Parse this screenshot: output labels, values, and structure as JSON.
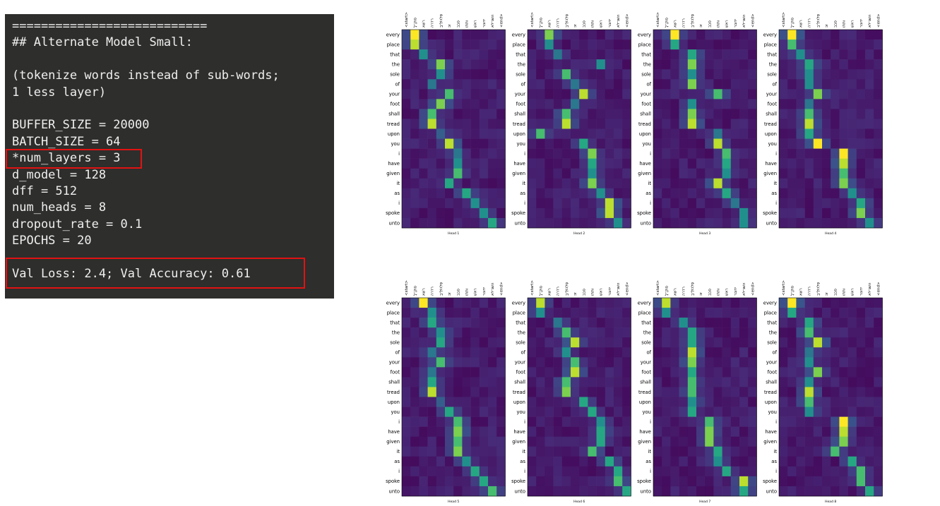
{
  "terminal": {
    "lines": [
      "===========================",
      "## Alternate Model Small:",
      "",
      "(tokenize words instead of sub-words;",
      "1 less layer)",
      "",
      "BUFFER_SIZE = 20000",
      "BATCH_SIZE = 64",
      "*num_layers = 3",
      "d_model = 128",
      "dff = 512",
      "num_heads = 8",
      "dropout_rate = 0.1",
      "EPOCHS = 20",
      "",
      "Val Loss: 2.4; Val Accuracy: 0.61"
    ]
  },
  "chart_data": {
    "type": "heatmap",
    "colormap": "viridis",
    "x_tokens": [
      "<start>",
      "סוּקְ־לָ",
      "רשׁא",
      "רדרה",
      "סְלִכוֹלְ־ךָ",
      "זכ",
      "סבב",
      "ותתו",
      "ראשׁ",
      "ידובר",
      "השׁנ־לא",
      "<end>"
    ],
    "y_tokens": [
      "every",
      "place",
      "that",
      "the",
      "sole",
      "of",
      "your",
      "foot",
      "shall",
      "tread",
      "upon",
      "you",
      "i",
      "have",
      "given",
      "it",
      "as",
      "i",
      "spoke",
      "unto"
    ],
    "heads": [
      {
        "name": "Head 1",
        "peaks": [
          [
            1,
            1.0
          ],
          [
            1,
            0.9
          ],
          [
            2,
            0.5
          ],
          [
            4,
            0.8
          ],
          [
            4,
            0.5
          ],
          [
            3,
            0.4
          ],
          [
            5,
            0.7
          ],
          [
            4,
            0.8
          ],
          [
            3,
            0.7
          ],
          [
            3,
            0.9
          ],
          [
            4,
            0.3
          ],
          [
            5,
            0.9
          ],
          [
            6,
            0.4
          ],
          [
            6,
            0.5
          ],
          [
            6,
            0.7
          ],
          [
            5,
            0.6
          ],
          [
            7,
            0.6
          ],
          [
            8,
            0.5
          ],
          [
            9,
            0.5
          ],
          [
            10,
            0.6
          ]
        ]
      },
      {
        "name": "Head 2",
        "peaks": [
          [
            2,
            0.8
          ],
          [
            2,
            0.5
          ],
          [
            3,
            0.4
          ],
          [
            8,
            0.5
          ],
          [
            4,
            0.7
          ],
          [
            5,
            0.4
          ],
          [
            6,
            0.9
          ],
          [
            5,
            0.4
          ],
          [
            4,
            0.7
          ],
          [
            4,
            0.9
          ],
          [
            1,
            0.7
          ],
          [
            6,
            0.6
          ],
          [
            7,
            0.8
          ],
          [
            7,
            0.6
          ],
          [
            7,
            0.5
          ],
          [
            7,
            0.8
          ],
          [
            8,
            0.5
          ],
          [
            9,
            0.9
          ],
          [
            9,
            0.9
          ],
          [
            10,
            0.5
          ]
        ]
      },
      {
        "name": "Head 3",
        "peaks": [
          [
            2,
            1.0
          ],
          [
            2,
            0.6
          ],
          [
            4,
            0.6
          ],
          [
            4,
            0.8
          ],
          [
            4,
            0.5
          ],
          [
            4,
            0.8
          ],
          [
            7,
            0.7
          ],
          [
            4,
            0.5
          ],
          [
            4,
            0.8
          ],
          [
            4,
            0.9
          ],
          [
            7,
            0.4
          ],
          [
            7,
            0.9
          ],
          [
            8,
            0.7
          ],
          [
            8,
            0.6
          ],
          [
            8,
            0.5
          ],
          [
            7,
            0.9
          ],
          [
            8,
            0.6
          ],
          [
            9,
            0.4
          ],
          [
            10,
            0.5
          ],
          [
            10,
            0.5
          ]
        ]
      },
      {
        "name": "Head 4",
        "peaks": [
          [
            1,
            1.0
          ],
          [
            1,
            0.7
          ],
          [
            2,
            0.5
          ],
          [
            3,
            0.6
          ],
          [
            3,
            0.5
          ],
          [
            3,
            0.5
          ],
          [
            4,
            0.8
          ],
          [
            3,
            0.4
          ],
          [
            3,
            0.7
          ],
          [
            3,
            0.9
          ],
          [
            3,
            0.6
          ],
          [
            4,
            1.0
          ],
          [
            7,
            1.0
          ],
          [
            7,
            0.9
          ],
          [
            7,
            0.7
          ],
          [
            7,
            0.8
          ],
          [
            8,
            0.5
          ],
          [
            9,
            0.6
          ],
          [
            9,
            0.8
          ],
          [
            10,
            0.5
          ]
        ]
      },
      {
        "name": "Head 5",
        "peaks": [
          [
            2,
            1.0
          ],
          [
            3,
            0.5
          ],
          [
            3,
            0.6
          ],
          [
            4,
            0.5
          ],
          [
            4,
            0.6
          ],
          [
            3,
            0.4
          ],
          [
            4,
            0.7
          ],
          [
            3,
            0.4
          ],
          [
            3,
            0.6
          ],
          [
            3,
            0.9
          ],
          [
            4,
            0.3
          ],
          [
            5,
            0.6
          ],
          [
            6,
            0.7
          ],
          [
            6,
            0.8
          ],
          [
            6,
            0.7
          ],
          [
            6,
            0.8
          ],
          [
            7,
            0.5
          ],
          [
            8,
            0.6
          ],
          [
            9,
            0.6
          ],
          [
            10,
            0.7
          ]
        ]
      },
      {
        "name": "Head 6",
        "peaks": [
          [
            1,
            0.9
          ],
          [
            1,
            0.5
          ],
          [
            3,
            0.4
          ],
          [
            4,
            0.7
          ],
          [
            5,
            0.9
          ],
          [
            4,
            0.5
          ],
          [
            5,
            0.7
          ],
          [
            5,
            0.9
          ],
          [
            4,
            0.7
          ],
          [
            4,
            0.8
          ],
          [
            6,
            0.6
          ],
          [
            7,
            0.6
          ],
          [
            8,
            0.5
          ],
          [
            8,
            0.6
          ],
          [
            8,
            0.6
          ],
          [
            7,
            0.7
          ],
          [
            9,
            0.6
          ],
          [
            10,
            0.6
          ],
          [
            10,
            0.7
          ],
          [
            11,
            0.6
          ]
        ]
      },
      {
        "name": "Head 7",
        "peaks": [
          [
            1,
            0.9
          ],
          [
            1,
            0.5
          ],
          [
            3,
            0.5
          ],
          [
            4,
            0.6
          ],
          [
            4,
            0.6
          ],
          [
            4,
            0.9
          ],
          [
            4,
            0.8
          ],
          [
            4,
            0.6
          ],
          [
            4,
            0.7
          ],
          [
            4,
            0.7
          ],
          [
            4,
            0.5
          ],
          [
            4,
            0.6
          ],
          [
            6,
            0.7
          ],
          [
            6,
            0.8
          ],
          [
            6,
            0.8
          ],
          [
            7,
            0.6
          ],
          [
            7,
            0.5
          ],
          [
            8,
            0.6
          ],
          [
            10,
            0.9
          ],
          [
            10,
            0.6
          ]
        ]
      },
      {
        "name": "Head 8",
        "peaks": [
          [
            1,
            1.0
          ],
          [
            1,
            0.6
          ],
          [
            3,
            0.6
          ],
          [
            3,
            0.7
          ],
          [
            4,
            0.9
          ],
          [
            3,
            0.4
          ],
          [
            3,
            0.5
          ],
          [
            4,
            0.8
          ],
          [
            3,
            0.5
          ],
          [
            3,
            0.9
          ],
          [
            3,
            0.7
          ],
          [
            3,
            0.5
          ],
          [
            7,
            1.0
          ],
          [
            7,
            0.9
          ],
          [
            7,
            0.8
          ],
          [
            6,
            0.7
          ],
          [
            8,
            0.6
          ],
          [
            9,
            0.7
          ],
          [
            9,
            0.7
          ],
          [
            10,
            0.6
          ]
        ]
      }
    ]
  }
}
